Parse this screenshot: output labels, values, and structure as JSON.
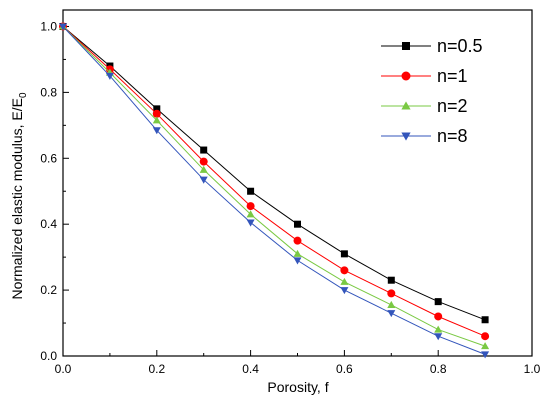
{
  "chart_data": {
    "type": "line",
    "xlabel": "Porosity, f",
    "ylabel_main": "Normalized elastic modulus, E/E",
    "ylabel_sub": "0",
    "xlim": [
      0.0,
      1.0
    ],
    "ylim": [
      0.0,
      1.05
    ],
    "x_ticks": [
      "0.0",
      "0.2",
      "0.4",
      "0.6",
      "0.8",
      "1.0"
    ],
    "y_ticks": [
      "0.0",
      "0.2",
      "0.4",
      "0.6",
      "0.8",
      "1.0"
    ],
    "grid": false,
    "legend_position": "top-right",
    "x": [
      0.0,
      0.1,
      0.2,
      0.3,
      0.4,
      0.5,
      0.6,
      0.7,
      0.8,
      0.9
    ],
    "series": [
      {
        "name": "n=0.5",
        "color": "#000000",
        "marker": "square",
        "values": [
          1.0,
          0.88,
          0.75,
          0.625,
          0.5,
          0.4,
          0.31,
          0.23,
          0.165,
          0.11
        ]
      },
      {
        "name": "n=1",
        "color": "#ff0000",
        "marker": "circle",
        "values": [
          1.0,
          0.87,
          0.735,
          0.59,
          0.455,
          0.35,
          0.26,
          0.19,
          0.12,
          0.06
        ]
      },
      {
        "name": "n=2",
        "color": "#7ac943",
        "marker": "triangle-up",
        "values": [
          1.0,
          0.86,
          0.715,
          0.565,
          0.43,
          0.31,
          0.225,
          0.155,
          0.08,
          0.03
        ]
      },
      {
        "name": "n=8",
        "color": "#3355bb",
        "marker": "triangle-down",
        "values": [
          1.0,
          0.85,
          0.685,
          0.535,
          0.405,
          0.29,
          0.2,
          0.13,
          0.06,
          0.005
        ]
      }
    ]
  }
}
